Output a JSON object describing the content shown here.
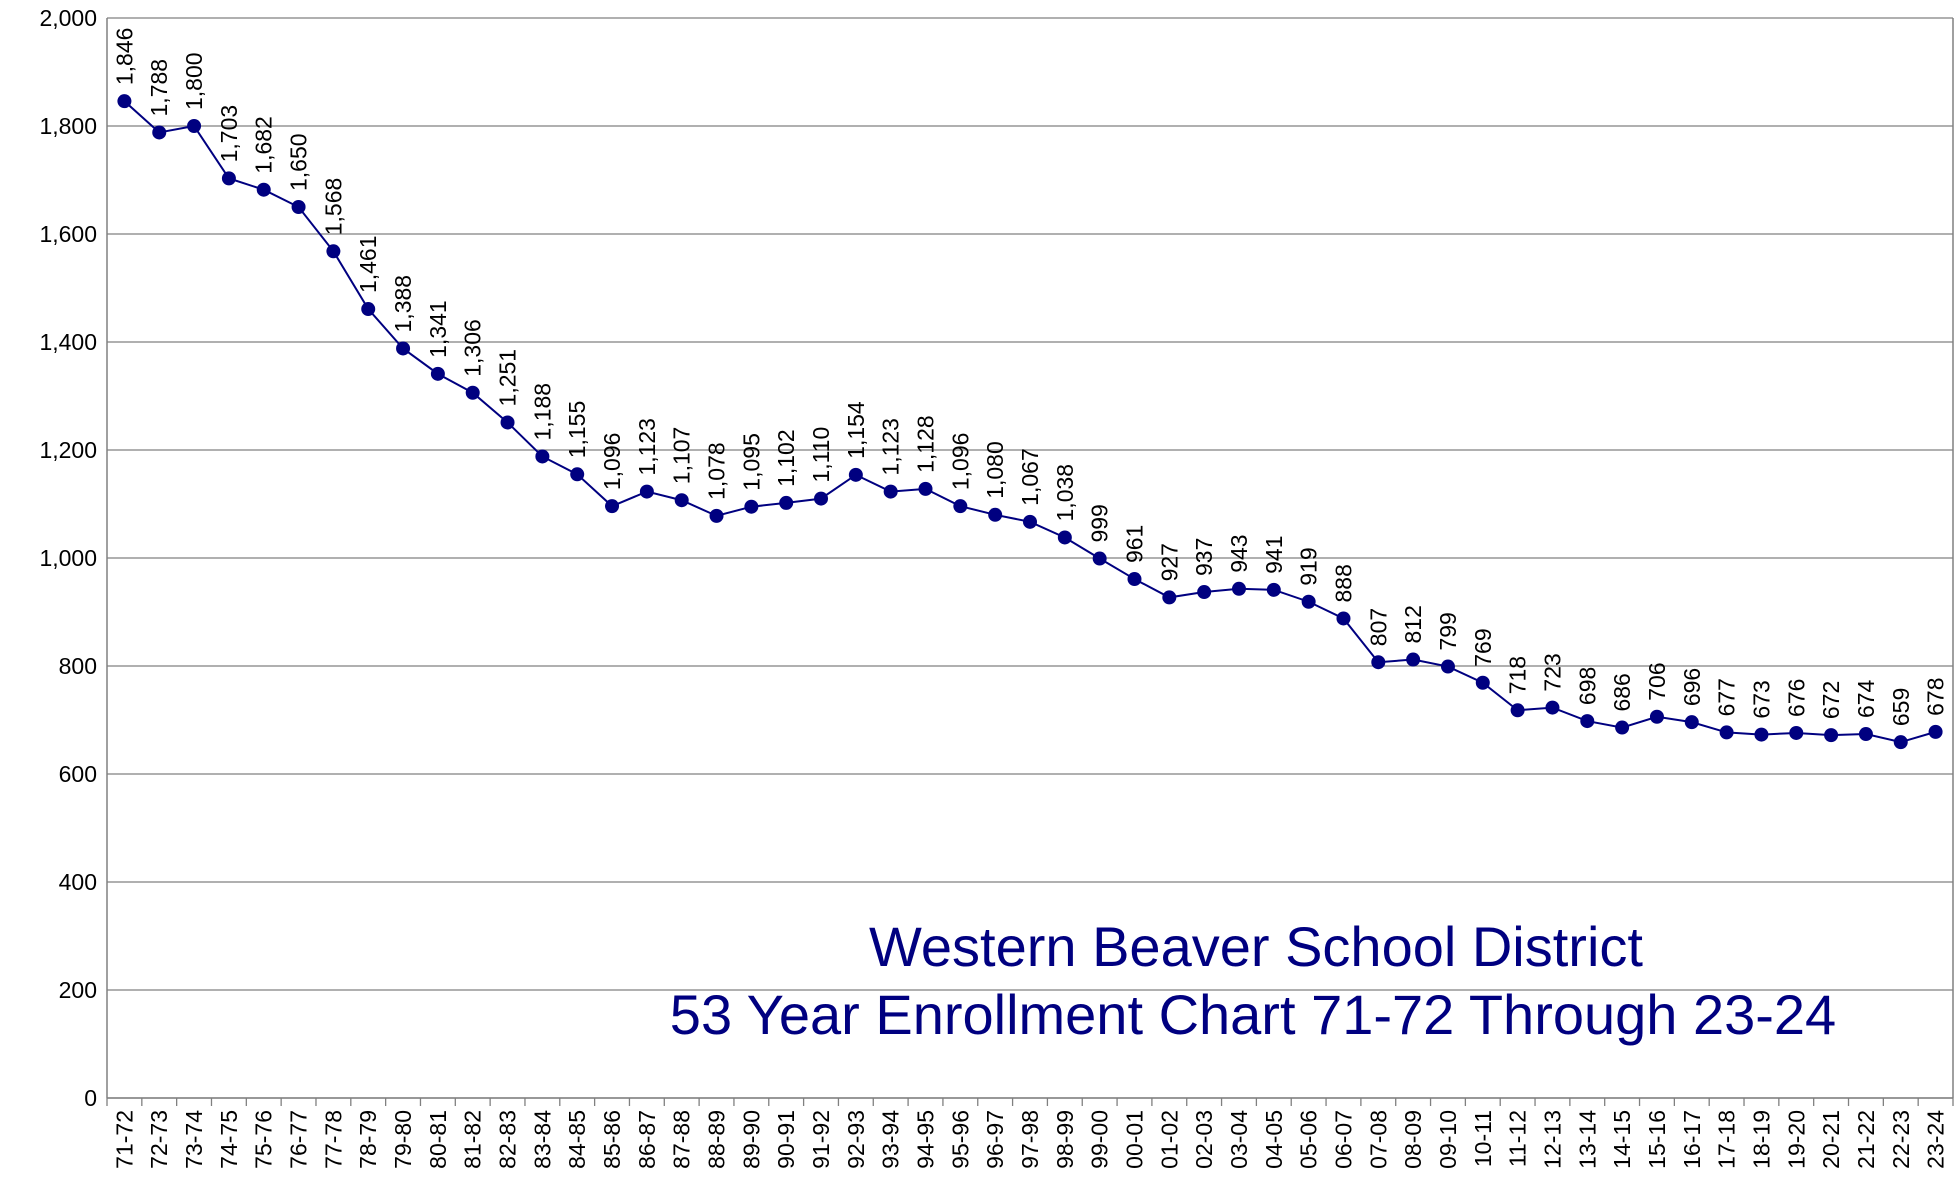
{
  "chart_data": {
    "type": "line",
    "title": "Western Beaver School District",
    "subtitle": "53 Year Enrollment Chart 71-72 Through 23-24",
    "categories": [
      "71-72",
      "72-73",
      "73-74",
      "74-75",
      "75-76",
      "76-77",
      "77-78",
      "78-79",
      "79-80",
      "80-81",
      "81-82",
      "82-83",
      "83-84",
      "84-85",
      "85-86",
      "86-87",
      "87-88",
      "88-89",
      "89-90",
      "90-91",
      "91-92",
      "92-93",
      "93-94",
      "94-95",
      "95-96",
      "96-97",
      "97-98",
      "98-99",
      "99-00",
      "00-01",
      "01-02",
      "02-03",
      "03-04",
      "04-05",
      "05-06",
      "06-07",
      "07-08",
      "08-09",
      "09-10",
      "10-11",
      "11-12",
      "12-13",
      "13-14",
      "14-15",
      "15-16",
      "16-17",
      "17-18",
      "18-19",
      "19-20",
      "20-21",
      "21-22",
      "22-23",
      "23-24"
    ],
    "series": [
      {
        "color": "#000080",
        "values": [
          1846,
          1788,
          1800,
          1703,
          1682,
          1650,
          1568,
          1461,
          1388,
          1341,
          1306,
          1251,
          1188,
          1155,
          1096,
          1123,
          1107,
          1078,
          1095,
          1102,
          1110,
          1154,
          1123,
          1128,
          1096,
          1080,
          1067,
          1038,
          999,
          961,
          927,
          937,
          943,
          941,
          919,
          888,
          807,
          812,
          799,
          769,
          718,
          723,
          698,
          686,
          706,
          696,
          677,
          673,
          676,
          672,
          674,
          659,
          678
        ],
        "value_labels": [
          "1,846",
          "1,788",
          "1,800",
          "1,703",
          "1,682",
          "1,650",
          "1,568",
          "1,461",
          "1,388",
          "1,341",
          "1,306",
          "1,251",
          "1,188",
          "1,155",
          "1,096",
          "1,123",
          "1,107",
          "1,078",
          "1,095",
          "1,102",
          "1,110",
          "1,154",
          "1,123",
          "1,128",
          "1,096",
          "1,080",
          "1,067",
          "1,038",
          "999",
          "961",
          "927",
          "937",
          "943",
          "941",
          "919",
          "888",
          "807",
          "812",
          "799",
          "769",
          "718",
          "723",
          "698",
          "686",
          "706",
          "696",
          "677",
          "673",
          "676",
          "672",
          "674",
          "659",
          "678"
        ]
      }
    ],
    "ylim": [
      0,
      2000
    ],
    "yticks": [
      0,
      200,
      400,
      600,
      800,
      {
        "value": 1000,
        "label": "1,000"
      },
      {
        "value": 1200,
        "label": "1,200"
      },
      {
        "value": 1400,
        "label": "1,400"
      },
      {
        "value": 1600,
        "label": "1,600"
      },
      {
        "value": 1800,
        "label": "1,800"
      },
      {
        "value": 2000,
        "label": "2,000"
      }
    ],
    "grid": true
  }
}
